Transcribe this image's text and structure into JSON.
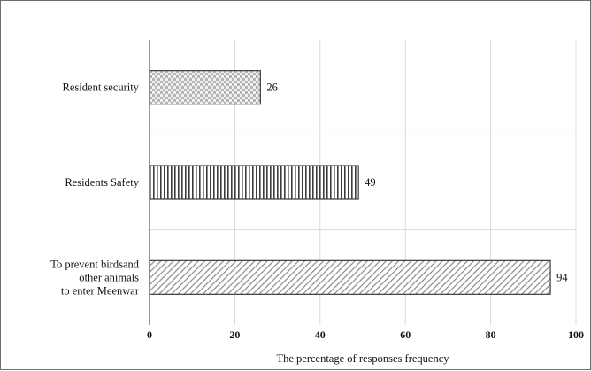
{
  "chart_data": {
    "type": "bar",
    "orientation": "horizontal",
    "title": "",
    "xlabel": "The percentage of responses frequency",
    "ylabel": "",
    "xlim": [
      0,
      100
    ],
    "xticks": [
      0,
      20,
      40,
      60,
      80,
      100
    ],
    "grid": true,
    "legend": "none",
    "categories": [
      "Resident security",
      "Residents Safety",
      "To prevent birdsand other animals to enter Meenwar"
    ],
    "category_lines": [
      [
        "Resident security"
      ],
      [
        "Residents Safety"
      ],
      [
        "To prevent birdsand",
        "other animals",
        "to enter Meenwar"
      ]
    ],
    "values": [
      26,
      49,
      94
    ],
    "patterns": [
      "checkered",
      "vertical-stripes",
      "diagonal-hatch"
    ],
    "colors": {
      "bar_stroke": "#3a3a3a",
      "grid": "#d9d9d9",
      "axis": "#555555",
      "pattern_ink": "#7a7a7a"
    }
  }
}
